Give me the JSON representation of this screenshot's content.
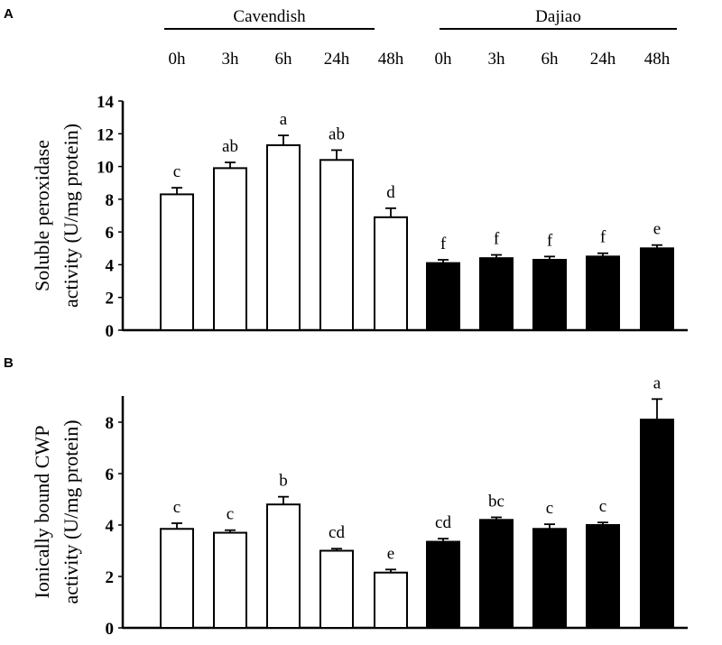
{
  "chart_data": [
    {
      "type": "bar",
      "panel": "A",
      "title": "",
      "groups": [
        "Cavendish",
        "Dajiao"
      ],
      "categories": [
        "0h",
        "3h",
        "6h",
        "24h",
        "48h"
      ],
      "ylabel_line1": "Soluble peroxidase",
      "ylabel_line2": "activity (U/mg protein)",
      "ylim": [
        0,
        14
      ],
      "yticks": [
        0,
        2,
        4,
        6,
        8,
        10,
        12,
        14
      ],
      "series": [
        {
          "name": "Cavendish",
          "color": "#ffffff",
          "values": [
            8.3,
            9.9,
            11.3,
            10.4,
            6.9
          ],
          "errors": [
            0.4,
            0.35,
            0.6,
            0.6,
            0.55
          ],
          "letters": [
            "c",
            "ab",
            "a",
            "ab",
            "d"
          ]
        },
        {
          "name": "Dajiao",
          "color": "#000000",
          "values": [
            4.1,
            4.4,
            4.3,
            4.5,
            5.0
          ],
          "errors": [
            0.2,
            0.2,
            0.2,
            0.2,
            0.2
          ],
          "letters": [
            "f",
            "f",
            "f",
            "f",
            "e"
          ]
        }
      ]
    },
    {
      "type": "bar",
      "panel": "B",
      "title": "",
      "groups": [
        "Cavendish",
        "Dajiao"
      ],
      "categories": [
        "0h",
        "3h",
        "6h",
        "24h",
        "48h"
      ],
      "ylabel_line1": "Ionically bound CWP",
      "ylabel_line2": "activity (U/mg protein)",
      "ylim": [
        0,
        9
      ],
      "yticks": [
        0,
        2,
        4,
        6,
        8
      ],
      "series": [
        {
          "name": "Cavendish",
          "color": "#ffffff",
          "values": [
            3.85,
            3.7,
            4.8,
            3.0,
            2.15
          ],
          "errors": [
            0.22,
            0.1,
            0.3,
            0.08,
            0.12
          ],
          "letters": [
            "c",
            "c",
            "b",
            "cd",
            "e"
          ]
        },
        {
          "name": "Dajiao",
          "color": "#000000",
          "values": [
            3.35,
            4.2,
            3.85,
            4.0,
            8.1
          ],
          "errors": [
            0.12,
            0.1,
            0.18,
            0.1,
            0.8
          ],
          "letters": [
            "cd",
            "bc",
            "c",
            "c",
            "a"
          ]
        }
      ]
    }
  ]
}
